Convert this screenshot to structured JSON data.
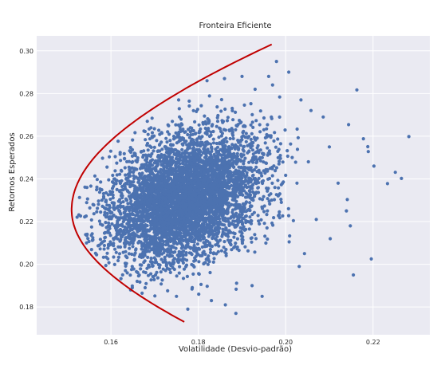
{
  "chart_data": {
    "type": "scatter",
    "title": "Fronteira Eficiente",
    "xlabel": "Volatilidade (Desvio-padrão)",
    "ylabel": "Retornos Esperados",
    "xlim": [
      0.143,
      0.233
    ],
    "ylim": [
      0.167,
      0.307
    ],
    "xticks": [
      0.16,
      0.18,
      0.2,
      0.22
    ],
    "xtick_labels": [
      "0.16",
      "0.18",
      "0.20",
      "0.22"
    ],
    "yticks": [
      0.18,
      0.2,
      0.22,
      0.24,
      0.26,
      0.28,
      0.3
    ],
    "ytick_labels": [
      "0.18",
      "0.20",
      "0.22",
      "0.24",
      "0.26",
      "0.28",
      "0.30"
    ],
    "grid": true,
    "background": "#eaeaf2",
    "scatter_color": "#4c72b0",
    "frontier_color": "#c00000",
    "series": [
      {
        "type": "scatter",
        "dense_cloud": {
          "center": [
            0.177,
            0.231
          ],
          "min_volatility": 0.151,
          "max_volatility": 0.199,
          "min_return": 0.185,
          "max_return": 0.283
        },
        "outliers": [
          [
            0.2282,
            0.2598
          ],
          [
            0.2265,
            0.2402
          ],
          [
            0.2251,
            0.2431
          ],
          [
            0.2233,
            0.2378
          ],
          [
            0.2202,
            0.246
          ],
          [
            0.2189,
            0.2528
          ],
          [
            0.2188,
            0.2551
          ],
          [
            0.2178,
            0.2588
          ],
          [
            0.2196,
            0.2025
          ],
          [
            0.2155,
            0.195
          ],
          [
            0.2163,
            0.2817
          ],
          [
            0.2144,
            0.2654
          ],
          [
            0.2141,
            0.2303
          ],
          [
            0.2139,
            0.225
          ],
          [
            0.2148,
            0.218
          ],
          [
            0.2102,
            0.212
          ],
          [
            0.207,
            0.221
          ],
          [
            0.2086,
            0.269
          ],
          [
            0.2058,
            0.272
          ],
          [
            0.2035,
            0.277
          ],
          [
            0.2052,
            0.248
          ],
          [
            0.2043,
            0.205
          ],
          [
            0.2031,
            0.199
          ],
          [
            0.2008,
            0.2105
          ],
          [
            0.1979,
            0.295
          ],
          [
            0.1961,
            0.288
          ],
          [
            0.197,
            0.284
          ],
          [
            0.2007,
            0.29
          ],
          [
            0.1946,
            0.185
          ],
          [
            0.1923,
            0.19
          ],
          [
            0.1886,
            0.177
          ],
          [
            0.1862,
            0.181
          ],
          [
            0.183,
            0.183
          ],
          [
            0.1801,
            0.186
          ],
          [
            0.1776,
            0.179
          ],
          [
            0.1645,
            0.188
          ],
          [
            0.166,
            0.192
          ],
          [
            0.175,
            0.185
          ],
          [
            0.182,
            0.286
          ],
          [
            0.19,
            0.288
          ],
          [
            0.186,
            0.287
          ],
          [
            0.193,
            0.282
          ],
          [
            0.21,
            0.255
          ],
          [
            0.212,
            0.238
          ]
        ]
      },
      {
        "type": "line",
        "min_variance_point": [
          0.151,
          0.2255
        ],
        "start": [
          0.1768,
          0.173
        ],
        "end": [
          0.1968,
          0.303
        ]
      }
    ]
  }
}
